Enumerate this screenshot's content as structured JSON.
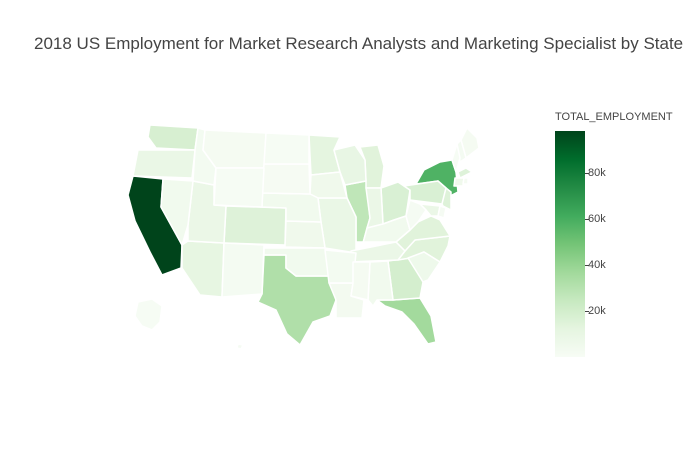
{
  "title": "2018 US Employment for Market Research Analysts and Marketing Specialist by State",
  "colorbar": {
    "title": "TOTAL_EMPLOYMENT",
    "ticks": [
      {
        "label": "20k",
        "value": 20000
      },
      {
        "label": "40k",
        "value": 40000
      },
      {
        "label": "60k",
        "value": 60000
      },
      {
        "label": "80k",
        "value": 80000
      }
    ],
    "min": 0,
    "max": 98000,
    "colorscale": [
      "#f7fcf5",
      "#e5f5e0",
      "#c7e9c0",
      "#a1d99b",
      "#74c476",
      "#41ab5d",
      "#238b45",
      "#006d2c",
      "#00441b"
    ]
  },
  "chart_data": {
    "type": "choropleth",
    "scope": "usa",
    "z_label": "TOTAL_EMPLOYMENT",
    "states": [
      {
        "code": "CA",
        "value": 98000
      },
      {
        "code": "NY",
        "value": 58000
      },
      {
        "code": "FL",
        "value": 36000
      },
      {
        "code": "TX",
        "value": 32000
      },
      {
        "code": "IL",
        "value": 27000
      },
      {
        "code": "GA",
        "value": 19000
      },
      {
        "code": "WA",
        "value": 18000
      },
      {
        "code": "OH",
        "value": 17000
      },
      {
        "code": "PA",
        "value": 17000
      },
      {
        "code": "CO",
        "value": 15000
      },
      {
        "code": "MI",
        "value": 14000
      },
      {
        "code": "NC",
        "value": 14000
      },
      {
        "code": "VA",
        "value": 14000
      },
      {
        "code": "MA",
        "value": 15000
      },
      {
        "code": "NJ",
        "value": 15000
      },
      {
        "code": "MN",
        "value": 12000
      },
      {
        "code": "AZ",
        "value": 11000
      },
      {
        "code": "WI",
        "value": 10000
      },
      {
        "code": "MO",
        "value": 9000
      },
      {
        "code": "OR",
        "value": 9000
      },
      {
        "code": "UT",
        "value": 8000
      },
      {
        "code": "IN",
        "value": 8000
      },
      {
        "code": "TN",
        "value": 8000
      },
      {
        "code": "MD",
        "value": 8000
      },
      {
        "code": "SC",
        "value": 6000
      },
      {
        "code": "KS",
        "value": 5000
      },
      {
        "code": "IA",
        "value": 5000
      },
      {
        "code": "NE",
        "value": 4000
      },
      {
        "code": "KY",
        "value": 4000
      },
      {
        "code": "AL",
        "value": 4000
      },
      {
        "code": "OK",
        "value": 4000
      },
      {
        "code": "NV",
        "value": 4000
      },
      {
        "code": "CT",
        "value": 5000
      },
      {
        "code": "LA",
        "value": 3000
      },
      {
        "code": "AR",
        "value": 2500
      },
      {
        "code": "NM",
        "value": 2000
      },
      {
        "code": "ID",
        "value": 2500
      },
      {
        "code": "MS",
        "value": 1500
      },
      {
        "code": "MT",
        "value": 1500
      },
      {
        "code": "WV",
        "value": 1200
      },
      {
        "code": "ME",
        "value": 1500
      },
      {
        "code": "NH",
        "value": 2000
      },
      {
        "code": "VT",
        "value": 800
      },
      {
        "code": "RI",
        "value": 1500
      },
      {
        "code": "DE",
        "value": 1200
      },
      {
        "code": "SD",
        "value": 1000
      },
      {
        "code": "ND",
        "value": 800
      },
      {
        "code": "WY",
        "value": 500
      },
      {
        "code": "AK",
        "value": 500
      },
      {
        "code": "HI",
        "value": 1200
      }
    ]
  }
}
